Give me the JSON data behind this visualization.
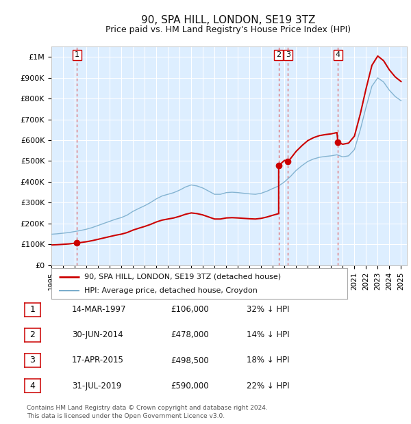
{
  "title": "90, SPA HILL, LONDON, SE19 3TZ",
  "subtitle": "Price paid vs. HM Land Registry's House Price Index (HPI)",
  "ylim": [
    0,
    1050000
  ],
  "xlim_start": 1995.0,
  "xlim_end": 2025.5,
  "yticks": [
    0,
    100000,
    200000,
    300000,
    400000,
    500000,
    600000,
    700000,
    800000,
    900000,
    1000000
  ],
  "ytick_labels": [
    "£0",
    "£100K",
    "£200K",
    "£300K",
    "£400K",
    "£500K",
    "£600K",
    "£700K",
    "£800K",
    "£900K",
    "£1M"
  ],
  "xtick_years": [
    1995,
    1996,
    1997,
    1998,
    1999,
    2000,
    2001,
    2002,
    2003,
    2004,
    2005,
    2006,
    2007,
    2008,
    2009,
    2010,
    2011,
    2012,
    2013,
    2014,
    2015,
    2016,
    2017,
    2018,
    2019,
    2020,
    2021,
    2022,
    2023,
    2024,
    2025
  ],
  "sales": [
    {
      "label": "1",
      "date_num": 1997.2,
      "price": 106000
    },
    {
      "label": "2",
      "date_num": 2014.5,
      "price": 478000
    },
    {
      "label": "3",
      "date_num": 2015.3,
      "price": 498500
    },
    {
      "label": "4",
      "date_num": 2019.58,
      "price": 590000
    }
  ],
  "sale_annotations": [
    {
      "label": "1",
      "date": "14-MAR-1997",
      "price": "£106,000",
      "pct": "32% ↓ HPI"
    },
    {
      "label": "2",
      "date": "30-JUN-2014",
      "price": "£478,000",
      "pct": "14% ↓ HPI"
    },
    {
      "label": "3",
      "date": "17-APR-2015",
      "price": "£498,500",
      "pct": "18% ↓ HPI"
    },
    {
      "label": "4",
      "date": "31-JUL-2019",
      "price": "£590,000",
      "pct": "22% ↓ HPI"
    }
  ],
  "legend_label_red": "90, SPA HILL, LONDON, SE19 3TZ (detached house)",
  "legend_label_blue": "HPI: Average price, detached house, Croydon",
  "footer": "Contains HM Land Registry data © Crown copyright and database right 2024.\nThis data is licensed under the Open Government Licence v3.0.",
  "fig_bg_color": "#ffffff",
  "plot_bg_color": "#ddeeff",
  "grid_color": "#ffffff",
  "red_line_color": "#cc0000",
  "blue_line_color": "#7aadcc",
  "vline_color": "#dd4444",
  "marker_color": "#cc0000",
  "legend_border_color": "#aaaaaa",
  "box_border_color": "#cc0000",
  "title_fontsize": 11,
  "subtitle_fontsize": 9,
  "tick_fontsize": 8,
  "xtick_fontsize": 7.5,
  "legend_fontsize": 8,
  "table_fontsize": 8.5,
  "footer_fontsize": 6.5
}
